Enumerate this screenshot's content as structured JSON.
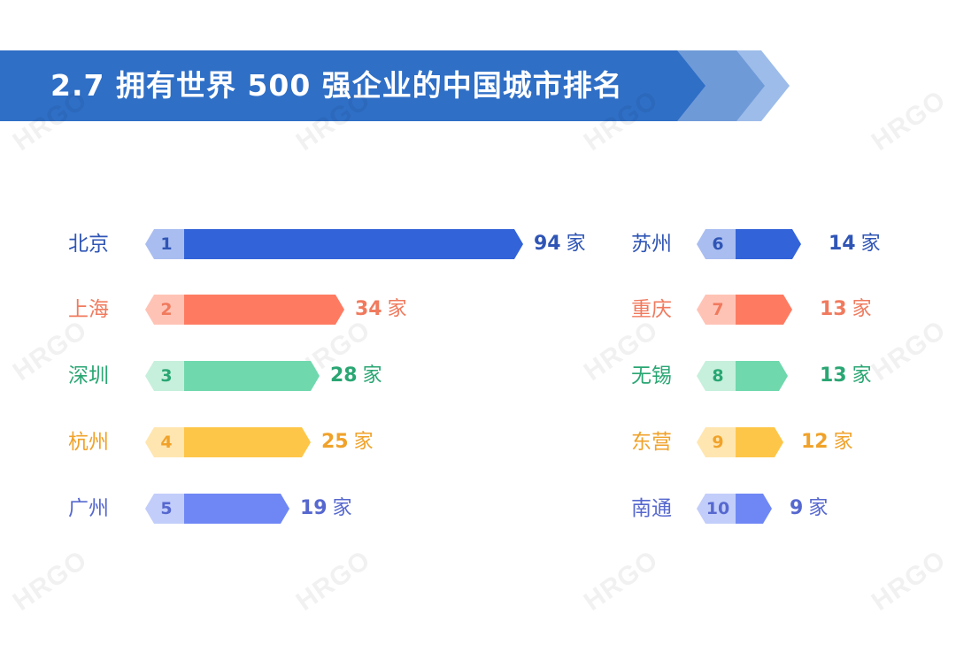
{
  "header": {
    "title": "2.7 拥有世界 500 强企业的中国城市排名",
    "colors": {
      "dark": "#2f6fc6",
      "mid": "#6f9ad8",
      "light": "#9dbce9"
    }
  },
  "watermark": "HRGO",
  "unit": "家",
  "rows": [
    {
      "rank": "1",
      "city": "北京",
      "value": "94",
      "color": "#3363d9",
      "tab": "#a9bdf0",
      "text": "#2f55b5",
      "rankText": "#2f55b5",
      "barEnd": 591
    },
    {
      "rank": "2",
      "city": "上海",
      "value": "34",
      "color": "#fe7b62",
      "tab": "#ffc3b6",
      "text": "#f07a5e",
      "rankText": "#f07a5e",
      "barEnd": 389
    },
    {
      "rank": "3",
      "city": "深圳",
      "value": "28",
      "color": "#6fd8ad",
      "tab": "#c6f0dc",
      "text": "#2aa673",
      "rankText": "#2aa673",
      "barEnd": 361
    },
    {
      "rank": "4",
      "city": "杭州",
      "value": "25",
      "color": "#fec648",
      "tab": "#ffe6b0",
      "text": "#f0a22a",
      "rankText": "#f0a22a",
      "barEnd": 351
    },
    {
      "rank": "5",
      "city": "广州",
      "value": "19",
      "color": "#6f87f5",
      "tab": "#c2cdfa",
      "text": "#5668cf",
      "rankText": "#5668cf",
      "barEnd": 327
    },
    {
      "rank": "6",
      "city": "苏州",
      "value": "14",
      "color": "#3363d9",
      "tab": "#a9bdf0",
      "text": "#2f55b5",
      "rankText": "#2f55b5",
      "barEnd": 905
    },
    {
      "rank": "7",
      "city": "重庆",
      "value": "13",
      "color": "#fe7b62",
      "tab": "#ffc3b6",
      "text": "#f07a5e",
      "rankText": "#f07a5e",
      "barEnd": 895
    },
    {
      "rank": "8",
      "city": "无锡",
      "value": "13",
      "color": "#6fd8ad",
      "tab": "#c6f0dc",
      "text": "#2aa673",
      "rankText": "#2aa673",
      "barEnd": 890
    },
    {
      "rank": "9",
      "city": "东营",
      "value": "12",
      "color": "#fec648",
      "tab": "#ffe6b0",
      "text": "#f0a22a",
      "rankText": "#f0a22a",
      "barEnd": 885
    },
    {
      "rank": "10",
      "city": "南通",
      "value": "9",
      "color": "#6f87f5",
      "tab": "#c2cdfa",
      "text": "#5668cf",
      "rankText": "#5668cf",
      "barEnd": 872
    }
  ],
  "chart_data": {
    "type": "bar",
    "title": "2.7 拥有世界 500 强企业的中国城市排名",
    "orientation": "horizontal",
    "categories": [
      "北京",
      "上海",
      "深圳",
      "杭州",
      "广州",
      "苏州",
      "重庆",
      "无锡",
      "东营",
      "南通"
    ],
    "ranks": [
      1,
      2,
      3,
      4,
      5,
      6,
      7,
      8,
      9,
      10
    ],
    "values": [
      94,
      34,
      28,
      25,
      19,
      14,
      13,
      13,
      12,
      9
    ],
    "unit": "家",
    "xlabel": "",
    "ylabel": "",
    "legend": "none",
    "grid": false
  }
}
